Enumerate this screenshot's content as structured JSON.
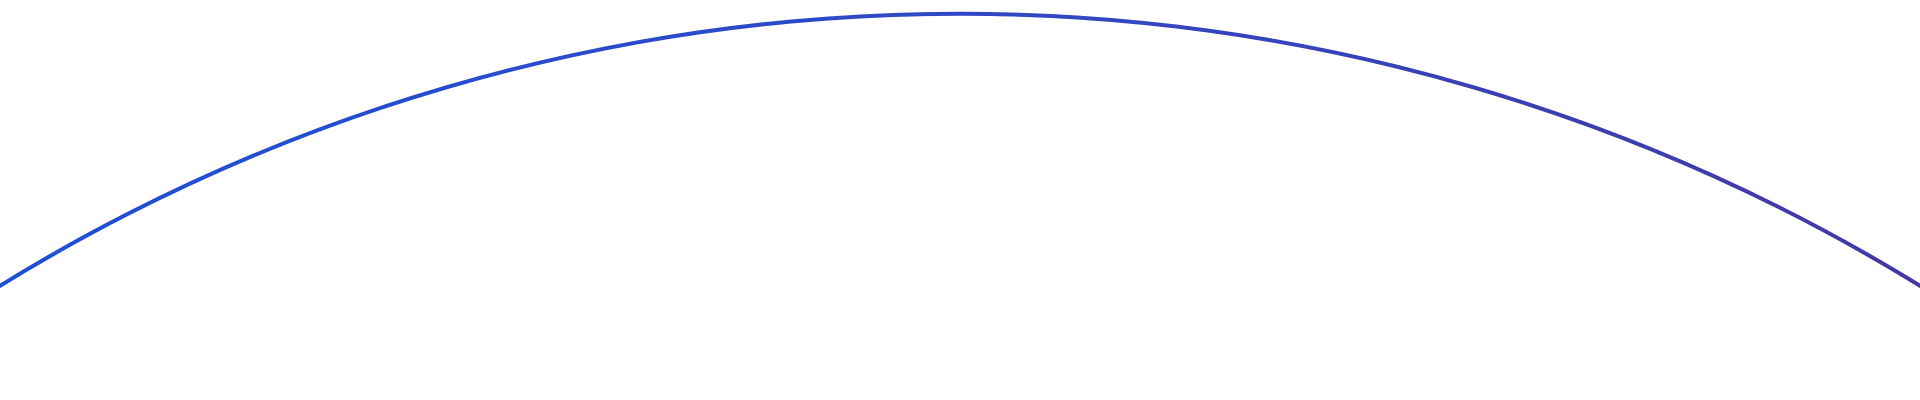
{
  "arc": {
    "gradient_start_color": "#1f4fd6",
    "gradient_mid_color": "#2f49c4",
    "gradient_end_color": "#4338a6",
    "background_color": "#ffffff"
  }
}
